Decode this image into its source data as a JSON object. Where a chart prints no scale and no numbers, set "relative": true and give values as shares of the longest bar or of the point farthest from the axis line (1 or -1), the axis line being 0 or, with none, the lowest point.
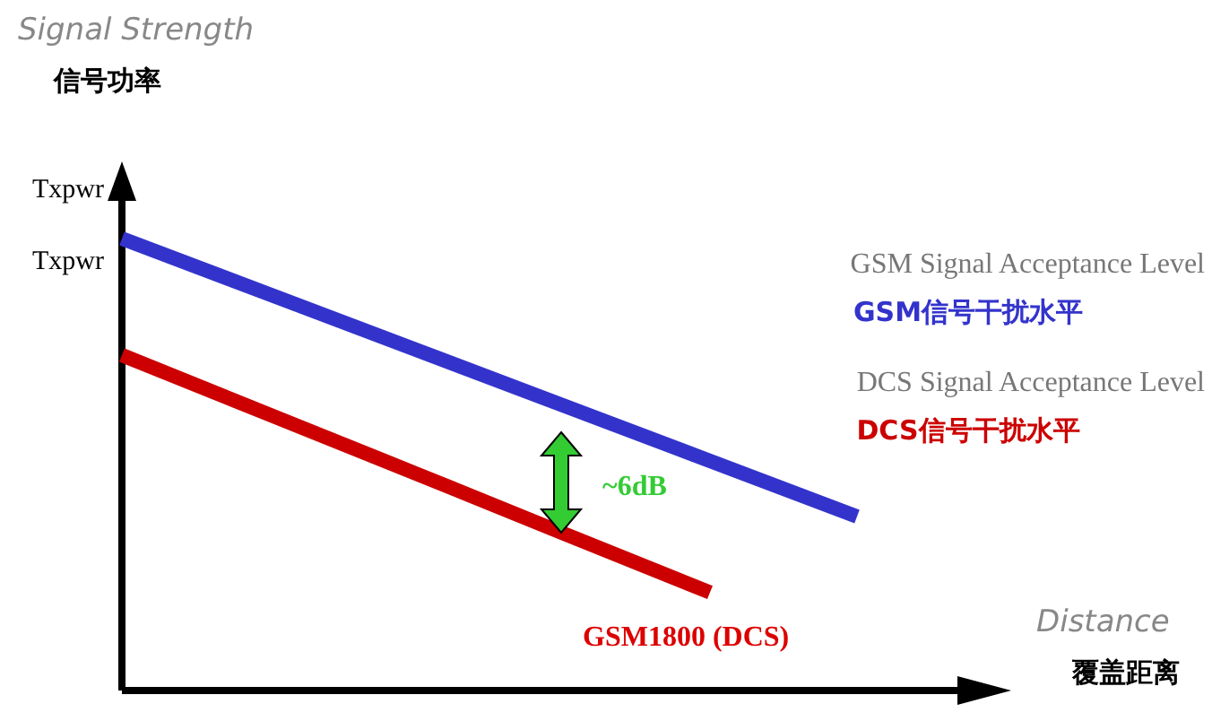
{
  "chart_data": {
    "type": "line",
    "relative": true,
    "ylabel": "Signal Strength\n信号功率",
    "xlabel": "Distance\n覆盖距离",
    "line_style": "solid",
    "categories": [
      null,
      null,
      null,
      null,
      null,
      null
    ],
    "series": [
      {
        "name": "GSM Signal Acceptance Level\nGSM信号干扰水平",
        "color": "#3333cc",
        "values": [
          1,
          0.877,
          0.754,
          0.631,
          0.508,
          0.385
        ]
      },
      {
        "name": "DCS Signal Acceptance Level\nDCS信号干扰水平",
        "color": "#cc0000",
        "values": [
          0.742,
          0.611,
          0.48,
          0.348,
          0.217,
          null
        ]
      }
    ],
    "annotations": [
      "Txpwr",
      "Txpwr",
      "~6dB",
      "GSM1800 (DCS)"
    ]
  }
}
